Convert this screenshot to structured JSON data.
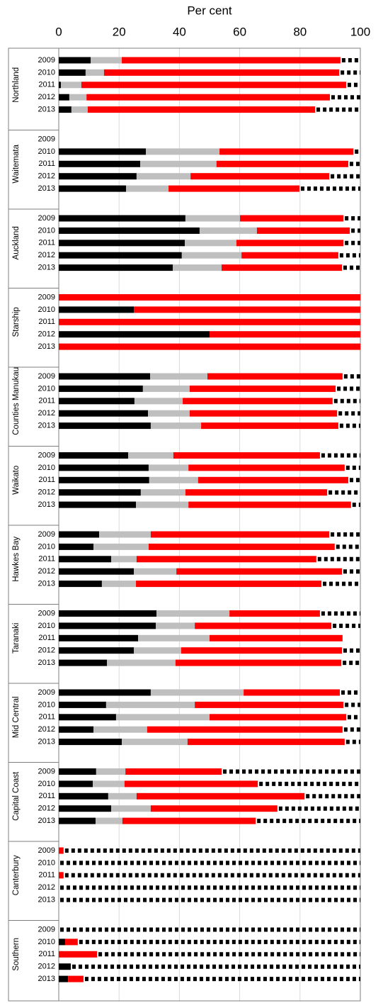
{
  "chart_data": {
    "type": "stacked-bar-horizontal",
    "x_label": "Per cent",
    "xlim": [
      0,
      100
    ],
    "xticks": [
      0,
      20,
      40,
      60,
      80,
      100
    ],
    "grid": true,
    "groups": [
      "Northland",
      "Waitemata",
      "Auckland",
      "Starship",
      "Counties Manukau",
      "Waikato",
      "Hawkes Bay",
      "Taranaki",
      "Mid Central",
      "Capital Coast",
      "Canterbury",
      "Southern"
    ],
    "categories": [
      "2009",
      "2010",
      "2011",
      "2012",
      "2013",
      "2009",
      "2010",
      "2011",
      "2012",
      "2013",
      "2009",
      "2010",
      "2011",
      "2012",
      "2013",
      "2009",
      "2010",
      "2011",
      "2012",
      "2013",
      "2009",
      "2010",
      "2011",
      "2012",
      "2013",
      "2009",
      "2010",
      "2011",
      "2012",
      "2013",
      "2009",
      "2010",
      "2011",
      "2012",
      "2013",
      "2009",
      "2010",
      "2011",
      "2012",
      "2013",
      "2009",
      "2010",
      "2011",
      "2012",
      "2013",
      "2009",
      "2010",
      "2011",
      "2012",
      "2013",
      "2009",
      "2010",
      "2011",
      "2012",
      "2013",
      "2009",
      "2010",
      "2011",
      "2012",
      "2013"
    ],
    "series": [
      {
        "color": "#000000",
        "values": [
          10.6,
          8.9,
          0.7,
          3.5,
          4.2,
          null,
          28.9,
          27.0,
          25.8,
          22.3,
          42.0,
          46.7,
          41.8,
          40.8,
          37.8,
          0,
          24.9,
          0,
          50,
          0,
          30.3,
          27.9,
          25.1,
          29.6,
          30.5,
          23.0,
          29.8,
          30.0,
          27.2,
          25.6,
          13.4,
          11.5,
          17.4,
          24.9,
          14.3,
          32.4,
          32.2,
          26.3,
          24.9,
          16.0,
          30.5,
          15.7,
          19.0,
          11.5,
          20.9,
          12.4,
          11.3,
          16.4,
          17.4,
          12.2,
          0,
          0,
          0,
          0,
          0,
          0,
          2.1,
          0,
          4.0,
          3.1
        ]
      },
      {
        "color": "#bfbfbf",
        "values": [
          10.3,
          6.1,
          6.8,
          5.7,
          5.4,
          null,
          24.4,
          25.3,
          17.9,
          14.1,
          18.1,
          19.0,
          17.1,
          19.8,
          16.2,
          0,
          0,
          0,
          0,
          0,
          19.0,
          15.5,
          16.0,
          13.8,
          16.7,
          15.0,
          13.2,
          16.2,
          14.8,
          17.4,
          17.1,
          18.3,
          8.4,
          14.1,
          11.3,
          24.2,
          12.9,
          23.7,
          15.7,
          22.7,
          30.8,
          29.4,
          31.0,
          17.8,
          21.8,
          9.7,
          10.5,
          9.4,
          13.1,
          8.9,
          0,
          0,
          0,
          0,
          0,
          0,
          0,
          0,
          0,
          0
        ]
      },
      {
        "color": "#ff0000",
        "values": [
          72.5,
          78.0,
          87.8,
          80.7,
          75.4,
          null,
          44.4,
          43.7,
          46.0,
          43.4,
          34.3,
          30.8,
          35.5,
          32.1,
          39.9,
          100,
          75.1,
          100,
          50,
          100,
          44.8,
          48.4,
          49.7,
          48.9,
          45.5,
          48.6,
          51.8,
          49.8,
          47.0,
          53.9,
          59.2,
          61.7,
          59.6,
          54.9,
          61.5,
          30.0,
          45.3,
          44.1,
          53.3,
          55.0,
          31.9,
          49.3,
          45.3,
          64.8,
          52.1,
          31.9,
          44.2,
          55.7,
          42.0,
          44.2,
          1.6,
          0,
          1.6,
          0,
          0,
          0,
          4.2,
          12.7,
          0,
          5.1
        ]
      },
      {
        "color": "#000000",
        "dashed": true,
        "values": [
          6.6,
          7.0,
          4.7,
          10.1,
          15.0,
          null,
          2.3,
          4.0,
          10.3,
          20.2,
          5.6,
          3.5,
          5.6,
          7.3,
          6.1,
          0,
          0,
          0,
          0,
          0,
          5.9,
          8.2,
          9.2,
          7.7,
          7.3,
          13.4,
          5.2,
          4.0,
          11.0,
          3.1,
          10.3,
          8.5,
          14.6,
          6.1,
          12.9,
          13.4,
          9.6,
          0,
          6.1,
          6.3,
          6.8,
          5.6,
          4.7,
          5.9,
          5.2,
          46.0,
          34.0,
          18.5,
          27.5,
          34.7,
          98.4,
          100,
          98.4,
          100,
          100,
          100,
          93.7,
          87.3,
          96.0,
          91.8
        ]
      }
    ]
  }
}
